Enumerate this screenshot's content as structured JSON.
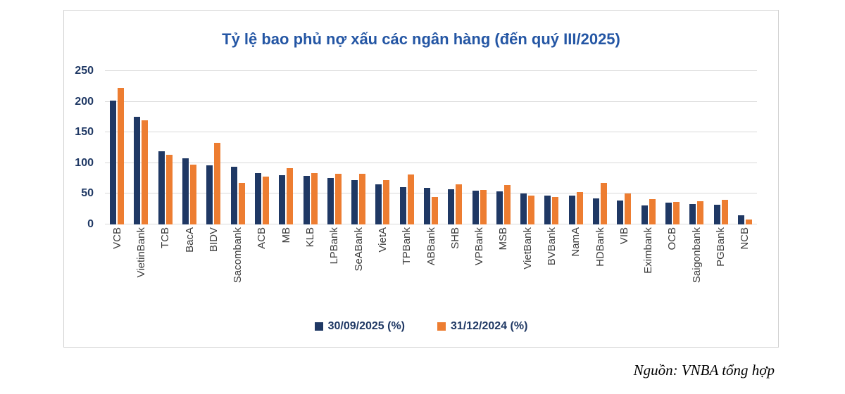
{
  "page": {
    "source_note": "Nguồn: VNBA tổng hợp"
  },
  "colors": {
    "series1": "#1F3864",
    "series2": "#ED7D31",
    "title": "#2456A4",
    "axis_labels": "#1F3864",
    "gridline": "#D9D9D9"
  },
  "chart_data": {
    "type": "bar",
    "title": "Tỷ lệ bao phủ nợ xấu các ngân hàng (đến quý III/2025)",
    "xlabel": "",
    "ylabel": "",
    "ylim": [
      0,
      250
    ],
    "yticks": [
      0,
      50,
      100,
      150,
      200,
      250
    ],
    "grid": true,
    "legend_position": "bottom",
    "categories": [
      "VCB",
      "VietinBank",
      "TCB",
      "BacA",
      "BIDV",
      "Sacombank",
      "ACB",
      "MB",
      "KLB",
      "LPBank",
      "SeABank",
      "VietA",
      "TPBank",
      "ABBank",
      "SHB",
      "VPBank",
      "MSB",
      "VietBank",
      "BVBank",
      "NamA",
      "HDBank",
      "VIB",
      "Eximbank",
      "OCB",
      "Saigonbank",
      "PGBank",
      "NCB"
    ],
    "series": [
      {
        "name": "30/09/2025 (%)",
        "color": "#1F3864",
        "values": [
          202,
          176,
          119,
          108,
          96,
          94,
          84,
          80,
          79,
          76,
          72,
          65,
          61,
          60,
          57,
          55,
          54,
          50,
          47,
          47,
          43,
          39,
          31,
          35,
          33,
          32,
          15
        ]
      },
      {
        "name": "31/12/2024 (%)",
        "color": "#ED7D31",
        "values": [
          223,
          170,
          114,
          97,
          133,
          68,
          78,
          92,
          84,
          83,
          83,
          72,
          81,
          45,
          65,
          56,
          64,
          47,
          45,
          53,
          68,
          50,
          41,
          37,
          38,
          40,
          8
        ]
      }
    ]
  }
}
